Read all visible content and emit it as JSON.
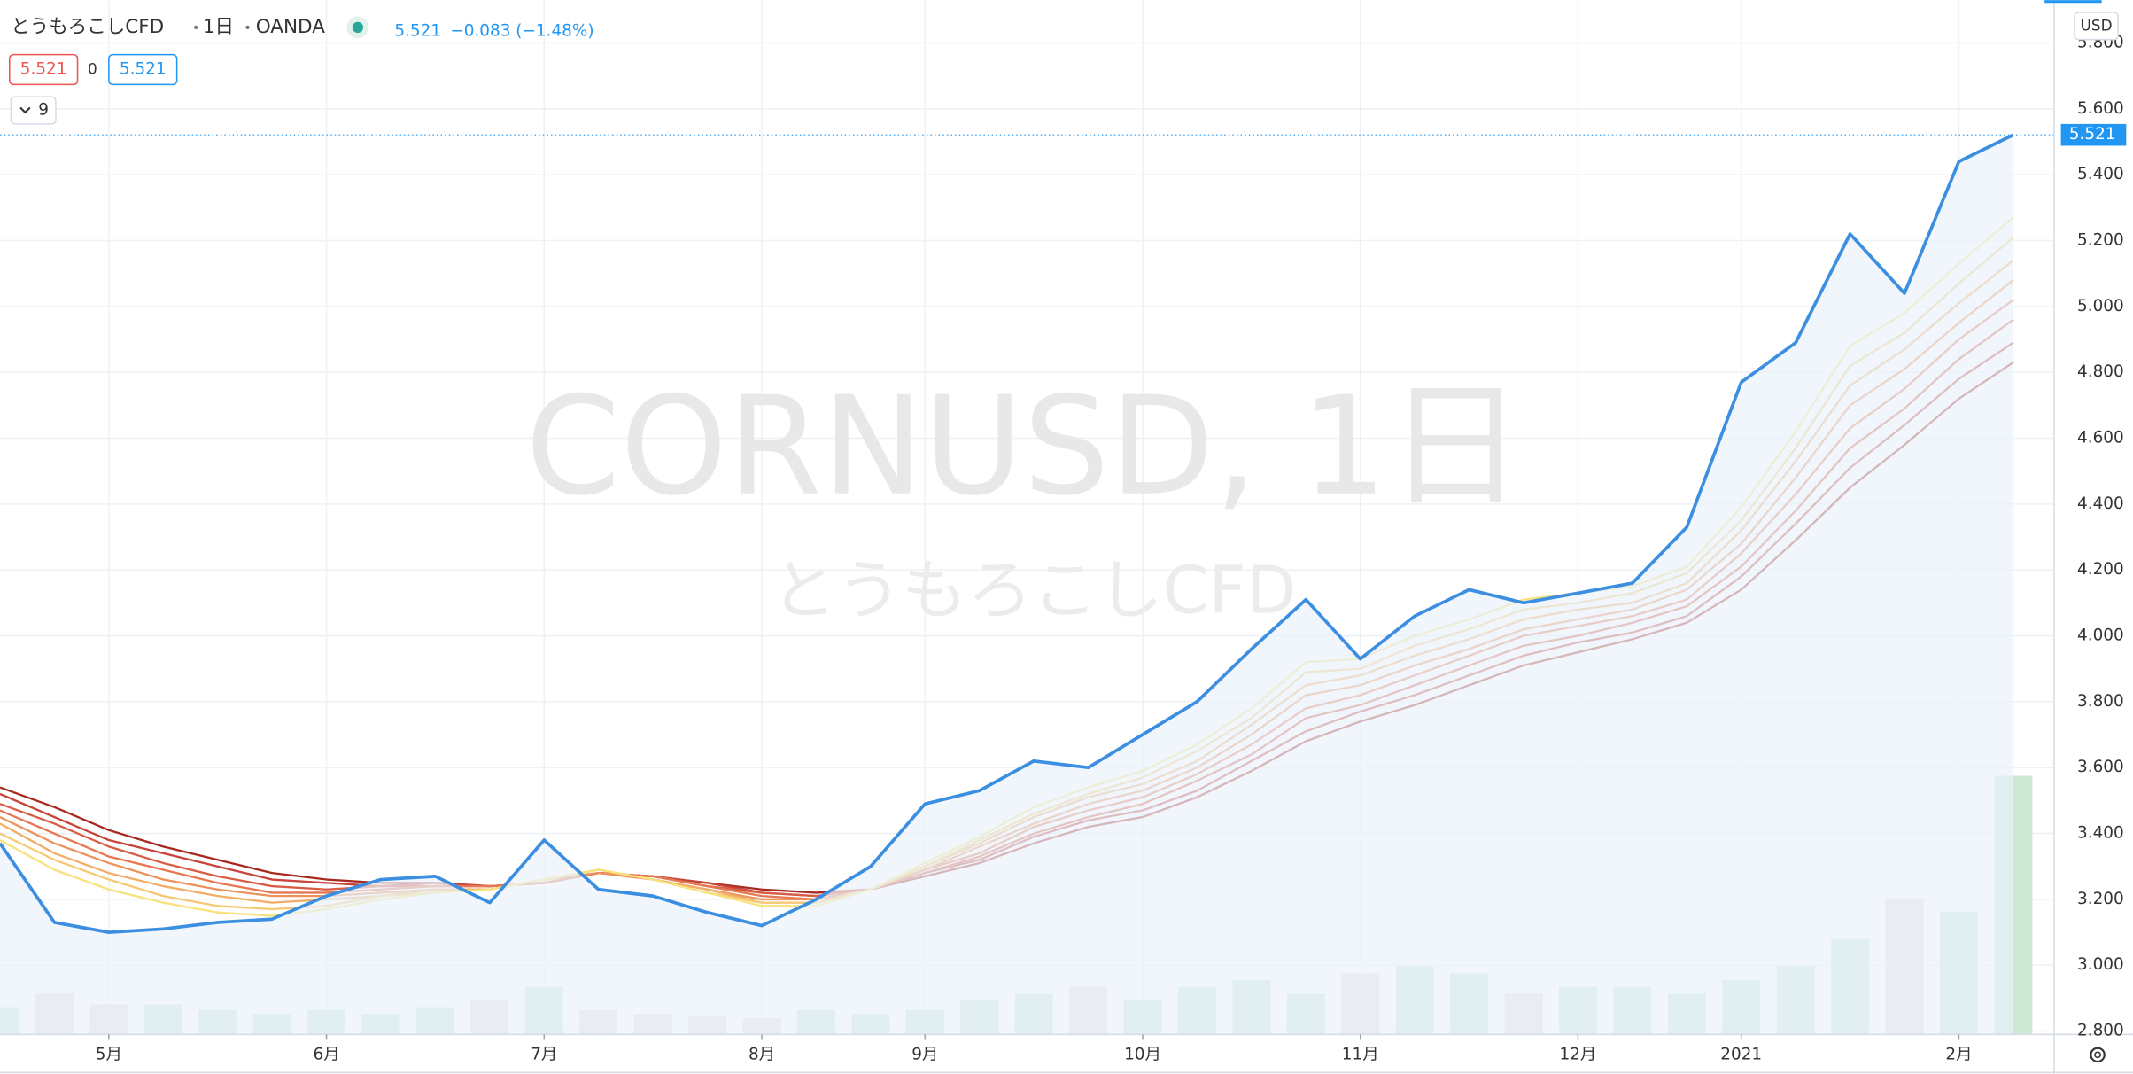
{
  "chart_data": {
    "type": "line",
    "header": {
      "symbol": "とうもろこしCFD",
      "interval": "1日",
      "exchange": "OANDA",
      "price": "5.521",
      "change": "−0.083 (−1.48%)",
      "bid": "5.521",
      "spread": "0",
      "ask": "5.521",
      "indicator_count": "9"
    },
    "watermark": "CORNUSD, 1日",
    "watermark_subtitle": "とうもろこしCFD",
    "currency": "USD",
    "last_value": 5.521,
    "categories": [
      null,
      null,
      "5月",
      null,
      null,
      null,
      "6月",
      null,
      null,
      null,
      "7月",
      null,
      null,
      null,
      "8月",
      null,
      null,
      "9月",
      null,
      null,
      null,
      "10月",
      null,
      null,
      null,
      "11月",
      null,
      null,
      null,
      "12月",
      null,
      null,
      "2021",
      null,
      null,
      null,
      "2月",
      null
    ],
    "series": [
      {
        "color": "#3c8fe0",
        "width": 2.4,
        "area": "#eaf2fb",
        "values": [
          3.37,
          3.13,
          3.1,
          3.11,
          3.13,
          3.14,
          3.21,
          3.26,
          3.27,
          3.19,
          3.38,
          3.23,
          3.21,
          3.16,
          3.12,
          3.2,
          3.3,
          3.49,
          3.53,
          3.62,
          3.6,
          3.7,
          3.8,
          3.96,
          4.11,
          3.93,
          4.06,
          4.14,
          4.1,
          4.13,
          4.16,
          4.33,
          4.77,
          4.89,
          5.22,
          5.04,
          5.44,
          5.521
        ]
      },
      {
        "color": "#f7e27c",
        "width": 1.5,
        "values": [
          3.38,
          3.29,
          3.23,
          3.19,
          3.16,
          3.15,
          3.17,
          3.2,
          3.22,
          3.23,
          3.26,
          3.29,
          3.26,
          3.22,
          3.18,
          3.18,
          3.23,
          3.31,
          3.39,
          3.48,
          3.54,
          3.59,
          3.67,
          3.78,
          3.92,
          3.93,
          4.0,
          4.05,
          4.11,
          4.13,
          4.15,
          4.21,
          4.39,
          4.62,
          4.88,
          4.98,
          5.13,
          5.27
        ]
      },
      {
        "color": "#f5c872",
        "width": 1.5,
        "values": [
          3.4,
          3.32,
          3.26,
          3.21,
          3.18,
          3.17,
          3.18,
          3.21,
          3.22,
          3.23,
          3.26,
          3.29,
          3.26,
          3.22,
          3.19,
          3.19,
          3.23,
          3.3,
          3.38,
          3.46,
          3.52,
          3.57,
          3.65,
          3.75,
          3.89,
          3.9,
          3.97,
          4.02,
          4.08,
          4.1,
          4.13,
          4.19,
          4.35,
          4.57,
          4.82,
          4.92,
          5.07,
          5.21
        ]
      },
      {
        "color": "#f2ad66",
        "width": 1.5,
        "values": [
          3.43,
          3.34,
          3.28,
          3.24,
          3.21,
          3.19,
          3.2,
          3.21,
          3.23,
          3.23,
          3.26,
          3.29,
          3.26,
          3.23,
          3.19,
          3.19,
          3.23,
          3.3,
          3.37,
          3.45,
          3.51,
          3.55,
          3.62,
          3.73,
          3.85,
          3.88,
          3.94,
          3.99,
          4.05,
          4.08,
          4.1,
          4.16,
          4.32,
          4.53,
          4.76,
          4.87,
          5.01,
          5.14
        ]
      },
      {
        "color": "#ee925c",
        "width": 1.5,
        "values": [
          3.45,
          3.37,
          3.31,
          3.26,
          3.23,
          3.21,
          3.21,
          3.22,
          3.23,
          3.23,
          3.26,
          3.28,
          3.26,
          3.23,
          3.2,
          3.2,
          3.23,
          3.29,
          3.36,
          3.43,
          3.49,
          3.53,
          3.6,
          3.7,
          3.82,
          3.85,
          3.91,
          3.96,
          4.02,
          4.05,
          4.08,
          4.14,
          4.28,
          4.48,
          4.7,
          4.81,
          4.95,
          5.08
        ]
      },
      {
        "color": "#e67751",
        "width": 1.5,
        "values": [
          3.47,
          3.4,
          3.33,
          3.29,
          3.25,
          3.22,
          3.22,
          3.23,
          3.24,
          3.24,
          3.25,
          3.28,
          3.27,
          3.24,
          3.21,
          3.2,
          3.23,
          3.29,
          3.34,
          3.42,
          3.47,
          3.51,
          3.58,
          3.67,
          3.78,
          3.82,
          3.88,
          3.94,
          4.0,
          4.03,
          4.06,
          4.11,
          4.25,
          4.43,
          4.63,
          4.75,
          4.9,
          5.02
        ]
      },
      {
        "color": "#d95d45",
        "width": 1.5,
        "values": [
          3.49,
          3.43,
          3.36,
          3.31,
          3.27,
          3.24,
          3.23,
          3.24,
          3.24,
          3.24,
          3.25,
          3.28,
          3.27,
          3.24,
          3.22,
          3.21,
          3.23,
          3.28,
          3.33,
          3.4,
          3.45,
          3.49,
          3.56,
          3.64,
          3.75,
          3.79,
          3.85,
          3.91,
          3.97,
          4.0,
          4.04,
          4.09,
          4.21,
          4.38,
          4.57,
          4.69,
          4.84,
          4.96
        ]
      },
      {
        "color": "#c7443a",
        "width": 1.5,
        "values": [
          3.52,
          3.45,
          3.38,
          3.34,
          3.3,
          3.26,
          3.25,
          3.24,
          3.25,
          3.24,
          3.25,
          3.28,
          3.27,
          3.25,
          3.22,
          3.21,
          3.23,
          3.28,
          3.32,
          3.39,
          3.44,
          3.47,
          3.53,
          3.62,
          3.71,
          3.77,
          3.82,
          3.88,
          3.94,
          3.98,
          4.01,
          4.06,
          4.18,
          4.34,
          4.51,
          4.64,
          4.78,
          4.89
        ]
      },
      {
        "color": "#a8291f",
        "width": 1.5,
        "values": [
          3.54,
          3.48,
          3.41,
          3.36,
          3.32,
          3.28,
          3.26,
          3.25,
          3.25,
          3.24,
          3.25,
          3.28,
          3.27,
          3.25,
          3.23,
          3.22,
          3.23,
          3.27,
          3.31,
          3.37,
          3.42,
          3.45,
          3.51,
          3.59,
          3.68,
          3.74,
          3.79,
          3.85,
          3.91,
          3.95,
          3.99,
          4.04,
          4.14,
          4.29,
          4.45,
          4.58,
          4.72,
          4.83
        ]
      }
    ],
    "volume": [
      20,
      30,
      22,
      22,
      18,
      15,
      18,
      15,
      20,
      25,
      35,
      18,
      15,
      14,
      12,
      18,
      15,
      18,
      25,
      30,
      35,
      25,
      35,
      40,
      30,
      45,
      50,
      45,
      30,
      35,
      35,
      30,
      40,
      50,
      70,
      100,
      90,
      190
    ],
    "volume_lim": [
      0,
      400
    ],
    "volume_up_color": "#cfe8d6",
    "volume_down_color": "#eadbe0",
    "ylim": [
      2.79,
      5.93
    ],
    "yticks": [
      {
        "value": 2.8,
        "label": "2.800"
      },
      {
        "value": 3.0,
        "label": "3.000"
      },
      {
        "value": 3.2,
        "label": "3.200"
      },
      {
        "value": 3.4,
        "label": "3.400"
      },
      {
        "value": 3.6,
        "label": "3.600"
      },
      {
        "value": 3.8,
        "label": "3.800"
      },
      {
        "value": 4.0,
        "label": "4.000"
      },
      {
        "value": 4.2,
        "label": "4.200"
      },
      {
        "value": 4.4,
        "label": "4.400"
      },
      {
        "value": 4.6,
        "label": "4.600"
      },
      {
        "value": 4.8,
        "label": "4.800"
      },
      {
        "value": 5.0,
        "label": "5.000"
      },
      {
        "value": 5.2,
        "label": "5.200"
      },
      {
        "value": 5.4,
        "label": "5.400"
      },
      {
        "value": 5.6,
        "label": "5.600"
      },
      {
        "value": 5.8,
        "label": "5.800"
      }
    ],
    "grid": true
  }
}
